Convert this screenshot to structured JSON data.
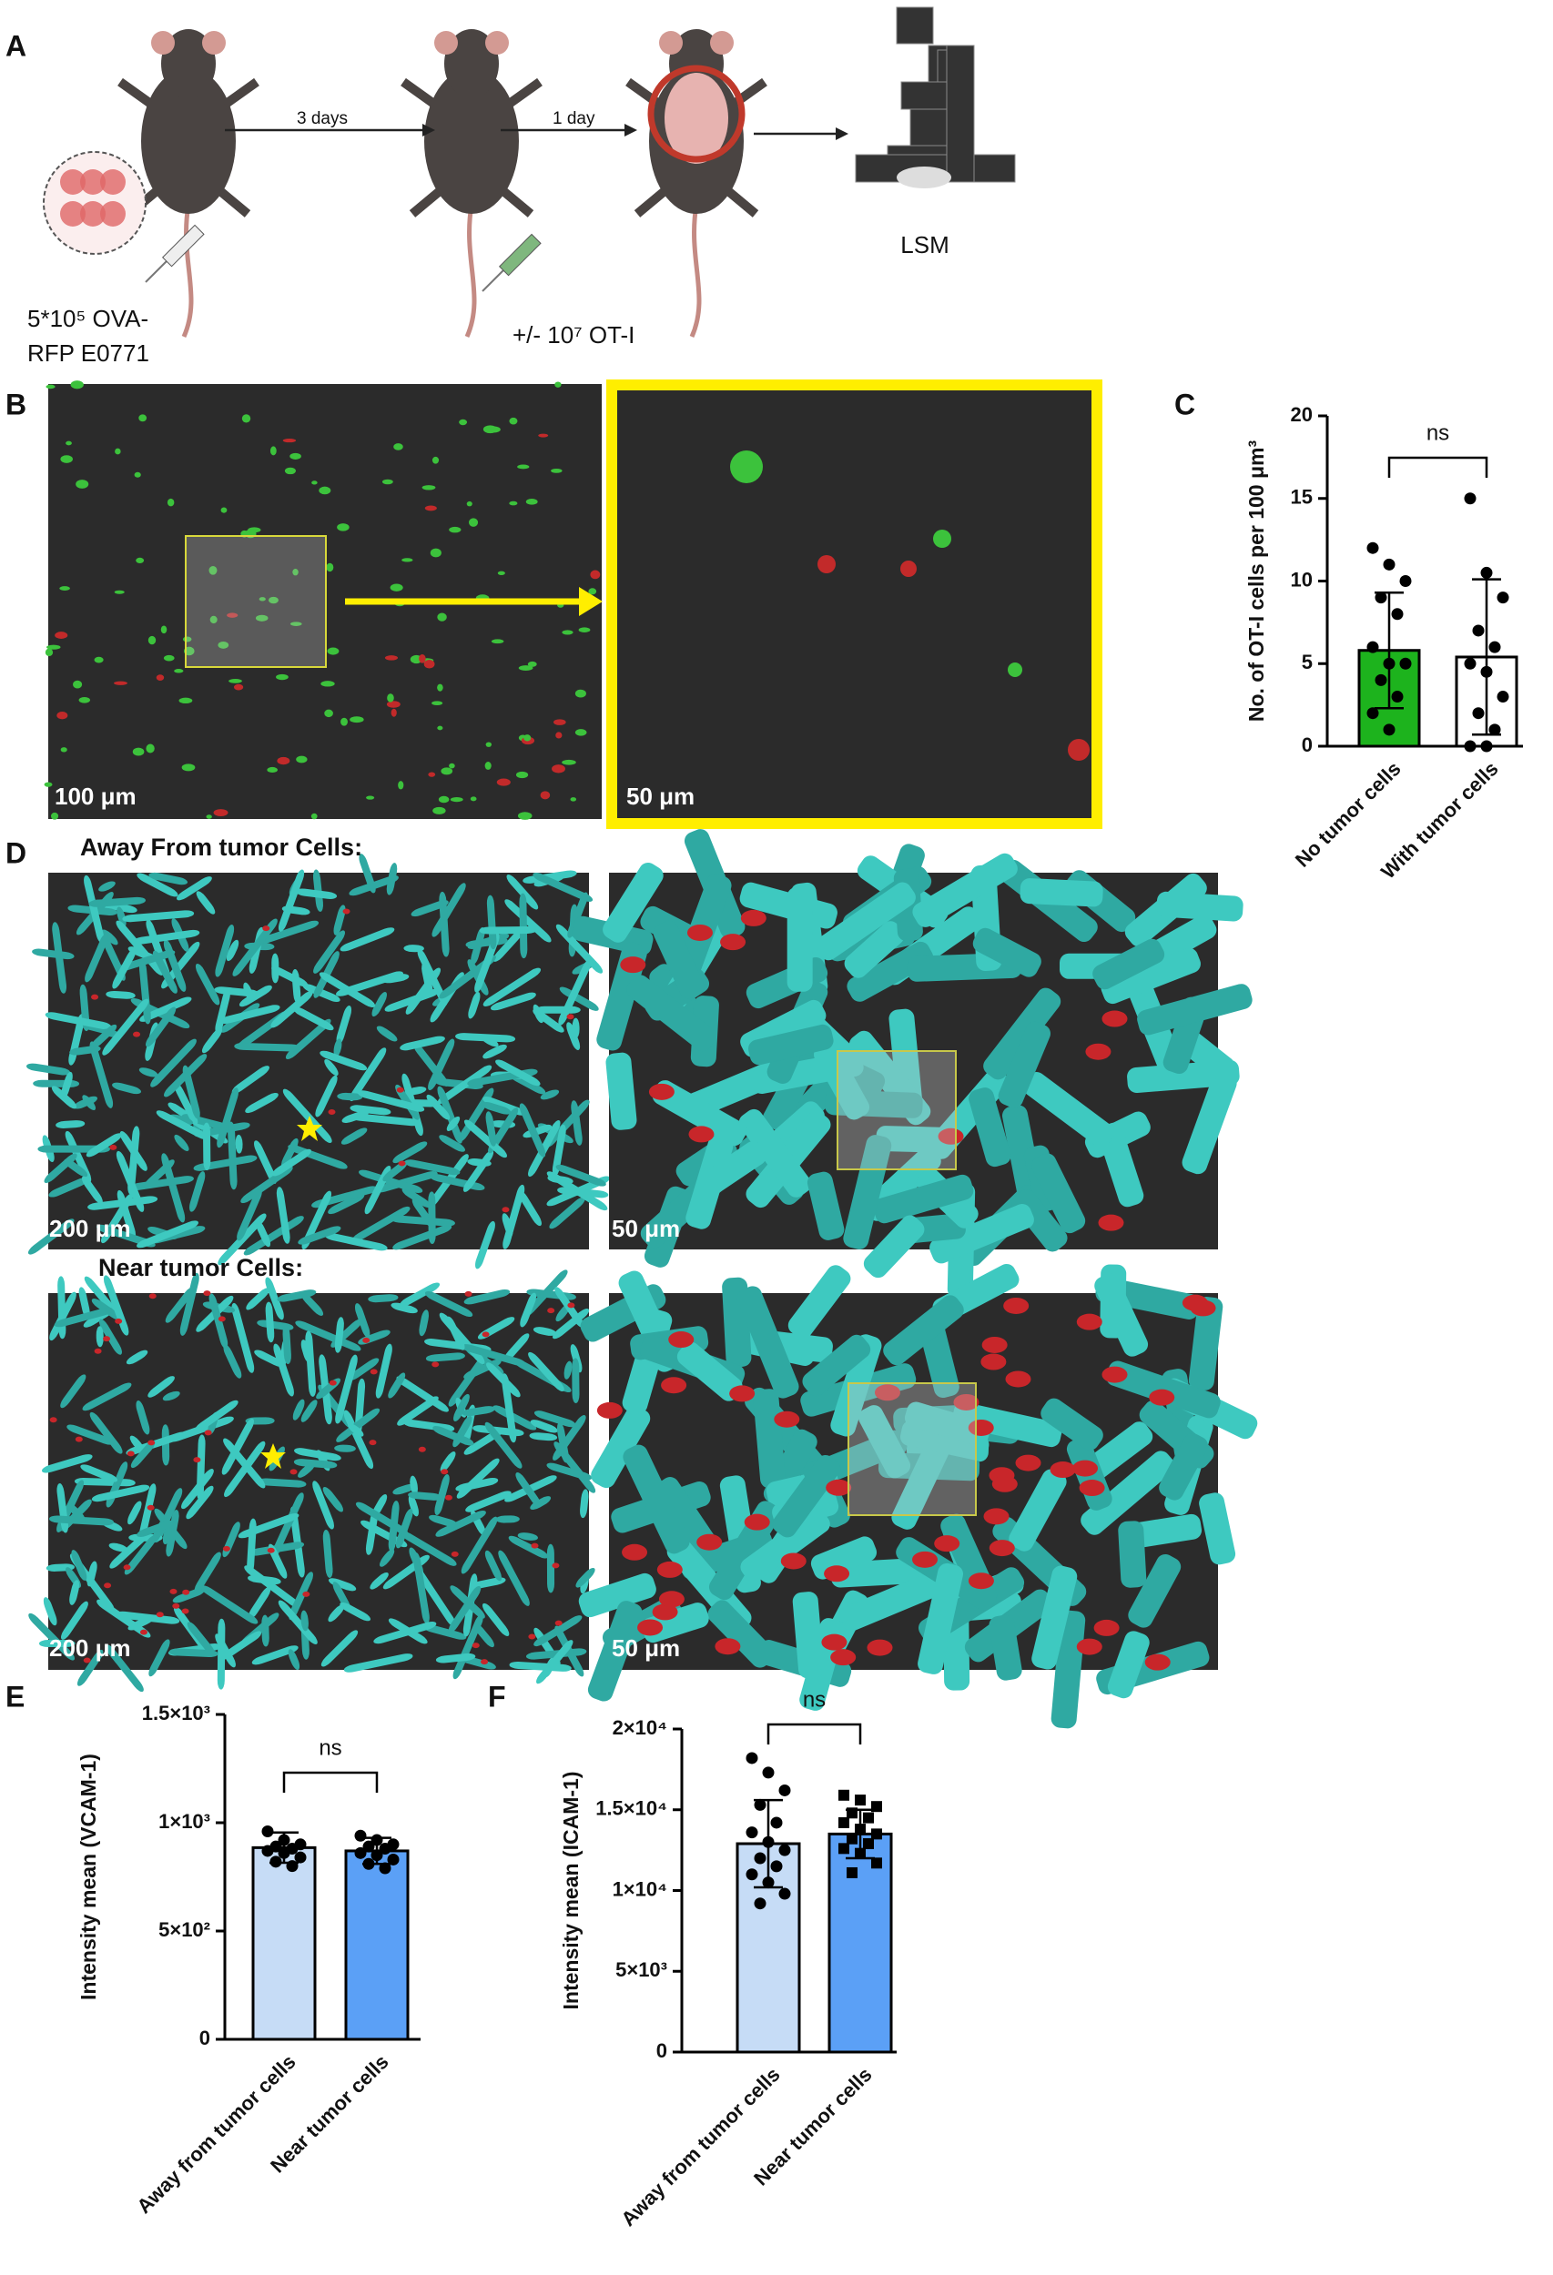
{
  "panel_labels": [
    "A",
    "B",
    "C",
    "D",
    "E",
    "F"
  ],
  "schematic": {
    "arrow_1": "3 days",
    "arrow_2": "1 day",
    "microscope": "LSM",
    "tumor_injection": [
      "5*10⁵ OVA-",
      "RFP E0771"
    ],
    "tcell_injection": "+/- 10⁷ OT-I"
  },
  "panel_b": {
    "scale_left": "100 μm",
    "scale_right": "50 μm"
  },
  "panel_d": {
    "away_title": "Away From tumor Cells:",
    "near_title": "Near tumor Cells:",
    "scale_away_left": "200 μm",
    "scale_away_right": "50 μm",
    "scale_near_left": "200 μm",
    "scale_near_right": "50 μm"
  },
  "chart_data": [
    {
      "type": "bar",
      "y_label": "No. of  OT-I cells per 100 μm³",
      "categories": [
        "No tumor cells",
        "With tumor cells"
      ],
      "values": [
        5.8,
        5.4
      ],
      "errors": [
        3.5,
        4.7
      ],
      "points": [
        [
          12,
          11,
          10,
          9,
          8,
          6,
          5,
          5,
          4,
          3,
          2,
          1
        ],
        [
          15,
          10.5,
          9,
          7,
          6,
          5,
          4.5,
          3,
          2,
          1,
          0,
          0
        ]
      ],
      "colors": [
        "#1db31d",
        "#ffffff"
      ],
      "markers": [
        "circle",
        "circle"
      ],
      "annotation": "ns",
      "ylim": [
        0,
        20
      ],
      "yticks": [
        0,
        5,
        10,
        15,
        20
      ]
    },
    {
      "type": "bar",
      "y_label": "Intensity mean (VCAM-1)",
      "categories": [
        "Away from tumor cells",
        "Near tumor cells"
      ],
      "values": [
        885,
        870
      ],
      "errors": [
        70,
        60
      ],
      "points": [
        [
          960,
          920,
          900,
          890,
          880,
          870,
          860,
          840,
          820,
          800
        ],
        [
          940,
          920,
          900,
          890,
          880,
          860,
          850,
          830,
          810,
          790
        ]
      ],
      "colors": [
        "#c6dcf6",
        "#5ba0f6"
      ],
      "markers": [
        "circle",
        "circle"
      ],
      "annotation": "ns",
      "ylim": [
        0,
        1500
      ],
      "yticks": [
        0,
        {
          "value": 500,
          "label": "5×10²"
        },
        {
          "value": 1000,
          "label": "1×10³"
        },
        {
          "value": 1500,
          "label": "1.5×10³"
        }
      ]
    },
    {
      "type": "bar",
      "y_label": "Intensity mean (ICAM-1)",
      "categories": [
        "Away from tumor cells",
        "Near tumor cells"
      ],
      "values": [
        12900,
        13500
      ],
      "errors": [
        2700,
        1500
      ],
      "points": [
        [
          18200,
          17300,
          16200,
          15300,
          14200,
          13600,
          13000,
          12500,
          12000,
          11500,
          11000,
          10500,
          9800,
          9200
        ],
        [
          15900,
          15600,
          15200,
          14800,
          14500,
          14200,
          13800,
          13500,
          13200,
          12900,
          12600,
          12300,
          11700,
          11100
        ]
      ],
      "colors": [
        "#c6dcf6",
        "#5ba0f6"
      ],
      "markers": [
        "circle",
        "square"
      ],
      "annotation": "ns",
      "ylim": [
        0,
        20000
      ],
      "yticks": [
        0,
        {
          "value": 5000,
          "label": "5×10³"
        },
        {
          "value": 10000,
          "label": "1×10⁴"
        },
        {
          "value": 15000,
          "label": "1.5×10⁴"
        },
        {
          "value": 20000,
          "label": "2×10⁴"
        }
      ]
    }
  ]
}
